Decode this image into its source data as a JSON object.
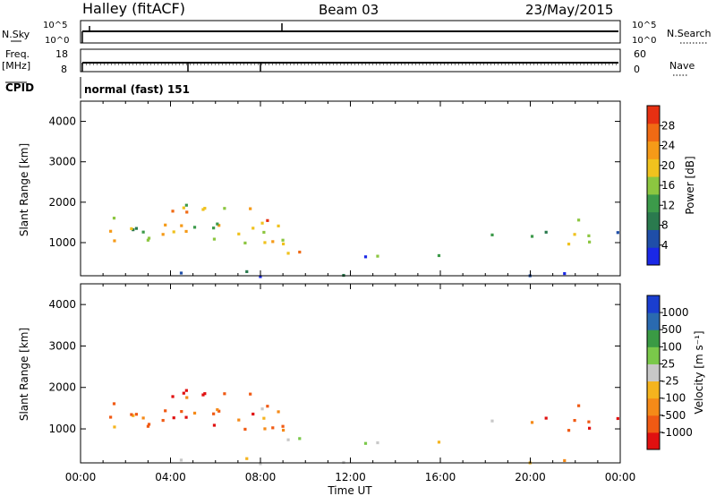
{
  "header": {
    "title": "Halley (fitACF)",
    "beam": "Beam 03",
    "date": "23/May/2015"
  },
  "status_panels": {
    "nsky_label": "N.Sky",
    "nsearch_label": "N.Search",
    "noise_ticks_left": [
      "10^5",
      "10^0"
    ],
    "noise_ticks_right": [
      "10^5",
      "10^0"
    ],
    "freq_label_1": "Freq.",
    "freq_label_2": "[MHz]",
    "freq_ticks": [
      "18",
      "8"
    ],
    "nave_label": "Nave",
    "nave_ticks": [
      "60",
      "0"
    ],
    "cpid_label": "CPID",
    "cpid_text": "normal (fast) 151"
  },
  "colors": {
    "power": [
      "#1a28e6",
      "#1f4ea8",
      "#2a7a4e",
      "#3c9a4a",
      "#8cc640",
      "#f0c21e",
      "#f59a18",
      "#f06a14",
      "#e63012"
    ],
    "velocity": [
      "#e01010",
      "#f05a14",
      "#f58a18",
      "#f5b41e",
      "#c8c8c8",
      "#7ac84a",
      "#3a9a44",
      "#2a6ab0",
      "#1a3ed0"
    ]
  },
  "chart_data": [
    {
      "type": "heatmap",
      "name": "power",
      "ylabel": "Slant Range [km]",
      "yticks": [
        "1000",
        "2000",
        "3000",
        "4000"
      ],
      "ylim": [
        180,
        4500
      ],
      "colorbar_label": "Power [dB]",
      "colorbar_ticks": [
        "4",
        "8",
        "12",
        "16",
        "20",
        "24",
        "28"
      ],
      "colorbar_range": [
        0,
        30
      ]
    },
    {
      "type": "heatmap",
      "name": "velocity",
      "ylabel": "Slant Range [km]",
      "yticks": [
        "1000",
        "2000",
        "3000",
        "4000"
      ],
      "ylim": [
        180,
        4500
      ],
      "colorbar_label": "Velocity [m s⁻¹]",
      "colorbar_ticks": [
        "-1000",
        "-500",
        "-100",
        "-25",
        "25",
        "100",
        "500",
        "1000"
      ],
      "xlabel": "Time UT",
      "xticks": [
        "00:00",
        "04:00",
        "08:00",
        "12:00",
        "16:00",
        "20:00",
        "00:00"
      ],
      "xlim_hours": [
        0,
        24
      ]
    }
  ]
}
